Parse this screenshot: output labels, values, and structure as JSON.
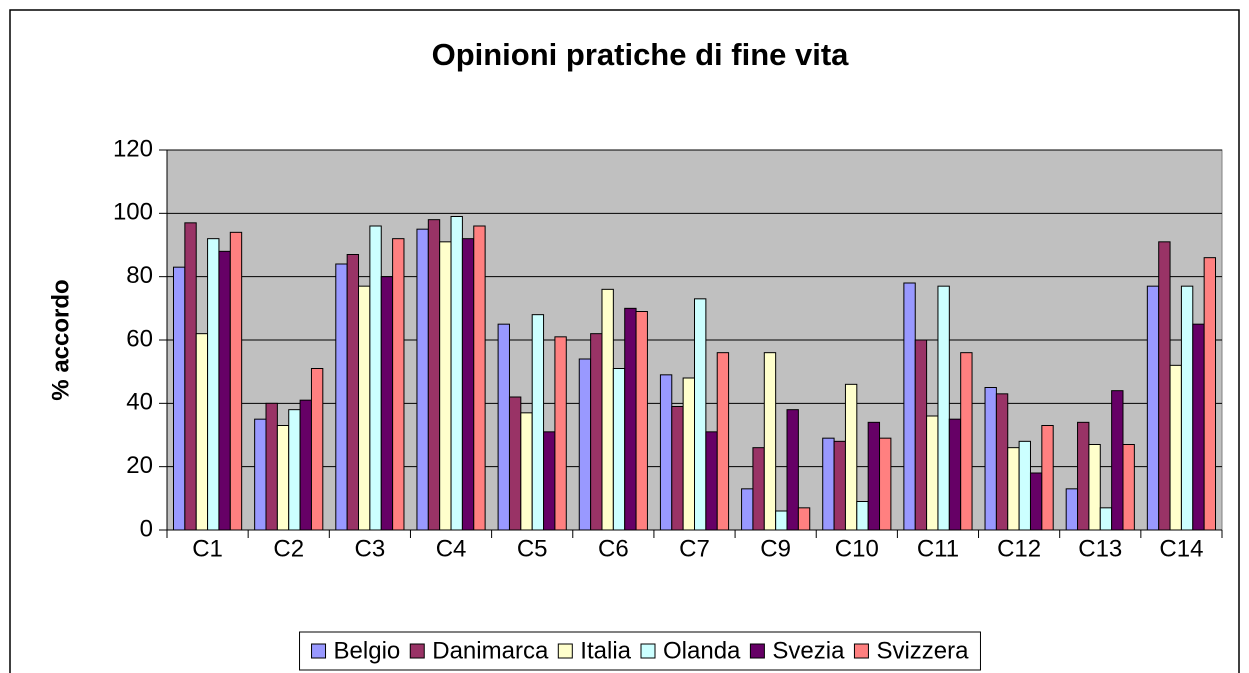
{
  "chart_data": {
    "type": "bar",
    "title": "Opinioni pratiche di fine vita",
    "y_label": "% accordo",
    "categories": [
      "C1",
      "C2",
      "C3",
      "C4",
      "C5",
      "C6",
      "C7",
      "C9",
      "C10",
      "C11",
      "C12",
      "C13",
      "C14"
    ],
    "series": [
      {
        "name": "Belgio",
        "color": "#9999ff",
        "values": [
          83,
          35,
          84,
          95,
          65,
          54,
          49,
          13,
          29,
          78,
          45,
          13,
          77
        ]
      },
      {
        "name": "Danimarca",
        "color": "#993366",
        "values": [
          97,
          40,
          87,
          98,
          42,
          62,
          39,
          26,
          28,
          60,
          43,
          34,
          91
        ]
      },
      {
        "name": "Italia",
        "color": "#ffffcc",
        "values": [
          62,
          33,
          77,
          91,
          37,
          76,
          48,
          56,
          46,
          36,
          26,
          27,
          52
        ]
      },
      {
        "name": "Olanda",
        "color": "#ccffff",
        "values": [
          92,
          38,
          96,
          99,
          68,
          51,
          73,
          6,
          9,
          77,
          28,
          7,
          77
        ]
      },
      {
        "name": "Svezia",
        "color": "#660066",
        "values": [
          88,
          41,
          80,
          92,
          31,
          70,
          31,
          38,
          34,
          35,
          18,
          44,
          65
        ]
      },
      {
        "name": "Svizzera",
        "color": "#ff8080",
        "values": [
          94,
          51,
          92,
          96,
          61,
          69,
          56,
          7,
          29,
          56,
          33,
          27,
          86
        ]
      }
    ],
    "ylim": [
      0,
      120
    ],
    "yticks": [
      0,
      20,
      40,
      60,
      80,
      100,
      120
    ],
    "grid": true,
    "legend": "bottom",
    "plot_background": "#c0c0c0"
  }
}
